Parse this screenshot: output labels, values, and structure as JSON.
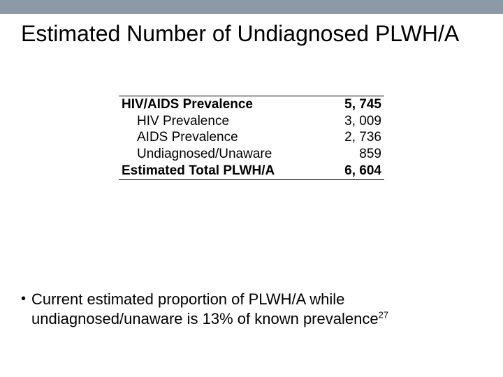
{
  "title": "Estimated Number of Undiagnosed PLWH/A",
  "table": {
    "rows": [
      {
        "label": "HIV/AIDS Prevalence",
        "value": "5, 745",
        "bold": true,
        "indent": false
      },
      {
        "label": "HIV Prevalence",
        "value": "3, 009",
        "bold": false,
        "indent": true
      },
      {
        "label": "AIDS Prevalence",
        "value": "2, 736",
        "bold": false,
        "indent": true
      },
      {
        "label": "Undiagnosed/Unaware",
        "value": "859",
        "bold": false,
        "indent": true
      },
      {
        "label": "Estimated Total PLWH/A",
        "value": "6, 604",
        "bold": true,
        "indent": false
      }
    ]
  },
  "bullet": {
    "text": "Current estimated proportion of PLWH/A while undiagnosed/unaware is 13% of known prevalence",
    "superscript": "27"
  },
  "colors": {
    "top_bar": "#8c99a6",
    "background": "#ffffff",
    "text": "#000000"
  }
}
